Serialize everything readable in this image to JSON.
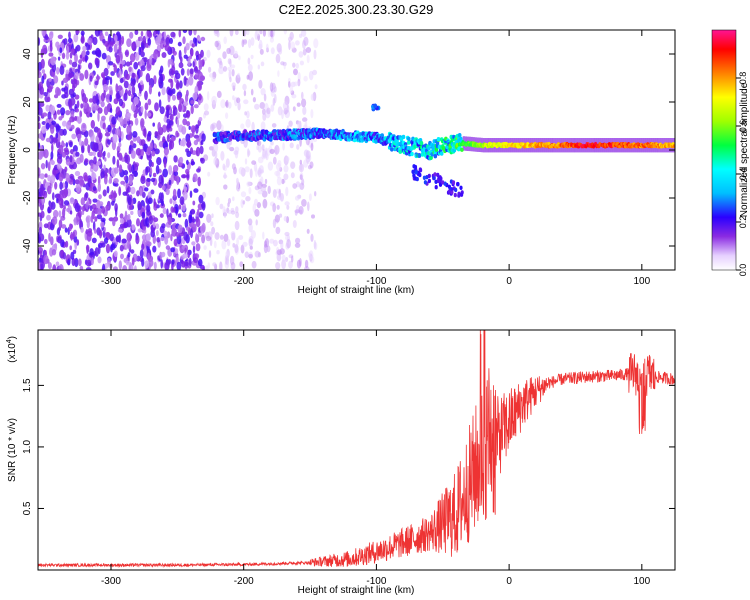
{
  "chart_data": [
    {
      "type": "heatmap",
      "title": "C2E2.2025.300.23.30.G29",
      "xlabel": "Height of straight line (km)",
      "ylabel": "Frequency (Hz)",
      "xlim": [
        -355,
        125
      ],
      "ylim": [
        -50,
        50
      ],
      "x_ticks": [
        -300,
        -200,
        -100,
        0,
        100
      ],
      "y_ticks": [
        -40,
        -20,
        0,
        20,
        40
      ],
      "colorbar": {
        "label": "Normalized spectral amplitude",
        "range": [
          0,
          1
        ],
        "ticks": [
          0.0,
          0.2,
          0.4,
          0.6,
          0.8
        ]
      },
      "features": {
        "noise_region_x": [
          -355,
          -145
        ],
        "signal_track": [
          {
            "x": -220,
            "f": 5,
            "amp": 0.25
          },
          {
            "x": -200,
            "f": 6,
            "amp": 0.25
          },
          {
            "x": -180,
            "f": 6,
            "amp": 0.3
          },
          {
            "x": -160,
            "f": 6.5,
            "amp": 0.3
          },
          {
            "x": -140,
            "f": 7,
            "amp": 0.3
          },
          {
            "x": -120,
            "f": 6,
            "amp": 0.35
          },
          {
            "x": -100,
            "f": 5,
            "amp": 0.35
          },
          {
            "x": -80,
            "f": 2,
            "amp": 0.4
          },
          {
            "x": -60,
            "f": 0,
            "amp": 0.45
          },
          {
            "x": -40,
            "f": 3,
            "amp": 0.5
          },
          {
            "x": -20,
            "f": 2,
            "amp": 0.65
          },
          {
            "x": 0,
            "f": 2,
            "amp": 0.75
          },
          {
            "x": 20,
            "f": 2,
            "amp": 0.8
          },
          {
            "x": 40,
            "f": 2,
            "amp": 0.85
          },
          {
            "x": 60,
            "f": 2,
            "amp": 0.95
          },
          {
            "x": 80,
            "f": 2,
            "amp": 0.9
          },
          {
            "x": 100,
            "f": 2,
            "amp": 0.85
          },
          {
            "x": 125,
            "f": 2,
            "amp": 0.8
          }
        ]
      }
    },
    {
      "type": "line",
      "xlabel": "Height of straight line (km)",
      "ylabel": "SNR (10 * v/v)",
      "y_scale_label": "(x10",
      "y_scale_exp": "4",
      "y_scale_close": ")",
      "xlim": [
        -355,
        125
      ],
      "ylim": [
        0,
        1.95
      ],
      "x_ticks": [
        -300,
        -200,
        -100,
        0,
        100
      ],
      "y_ticks": [
        0.5,
        1.0,
        1.5
      ],
      "y_tick_labels": [
        "0.5",
        "1.0",
        "1.5"
      ],
      "series": [
        {
          "name": "SNR",
          "color": "#ee3333",
          "x": [
            -355,
            -300,
            -250,
            -200,
            -150,
            -120,
            -100,
            -80,
            -60,
            -40,
            -30,
            -20,
            -15,
            -10,
            0,
            10,
            20,
            30,
            40,
            60,
            80,
            95,
            100,
            105,
            110,
            125
          ],
          "y": [
            0.04,
            0.04,
            0.04,
            0.045,
            0.06,
            0.09,
            0.15,
            0.22,
            0.3,
            0.45,
            0.7,
            0.95,
            1.1,
            1.05,
            1.2,
            1.35,
            1.45,
            1.52,
            1.55,
            1.57,
            1.58,
            1.6,
            1.5,
            1.6,
            1.57,
            1.55
          ]
        }
      ]
    }
  ]
}
